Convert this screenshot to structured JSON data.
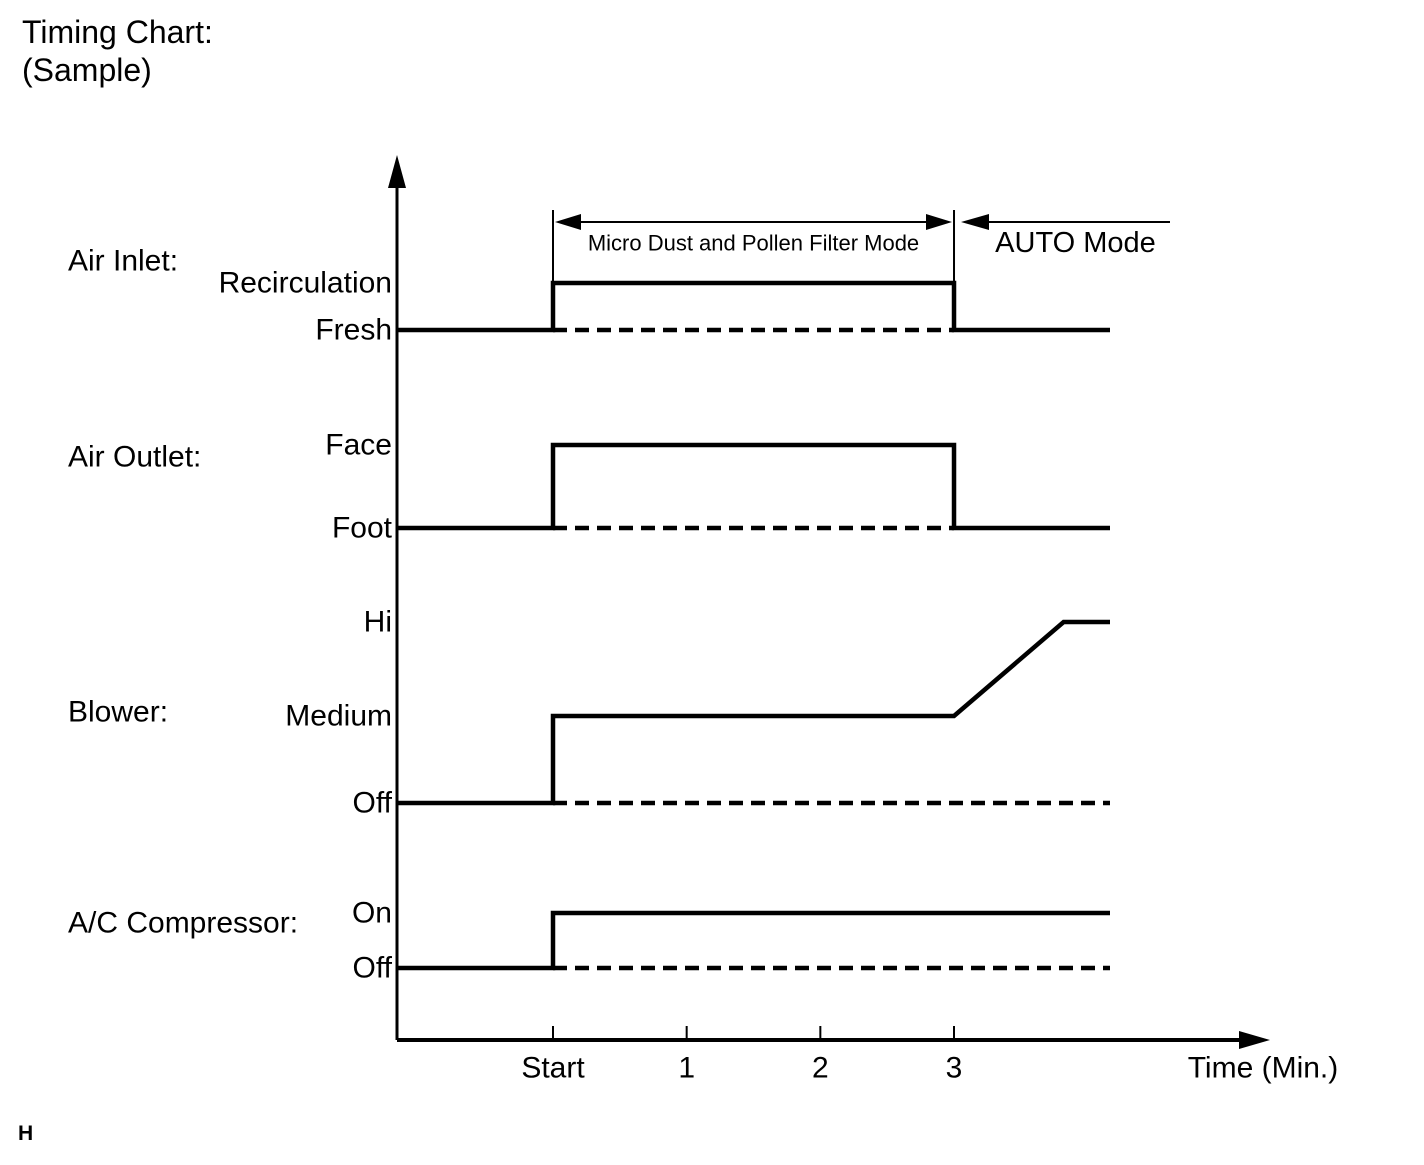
{
  "page": {
    "title_line1": "Timing Chart:",
    "title_line2": "(Sample)",
    "footer_mark": "H"
  },
  "colors": {
    "ink": "#000000",
    "background": "#ffffff"
  },
  "chart_data": {
    "type": "timing",
    "title": "Timing Chart: (Sample)",
    "x_axis": {
      "label": "Time (Min.)",
      "ticks": [
        {
          "t": 0,
          "label": "Start"
        },
        {
          "t": 1,
          "label": "1"
        },
        {
          "t": 2,
          "label": "2"
        },
        {
          "t": 3,
          "label": "3"
        }
      ]
    },
    "annotations": [
      {
        "kind": "range",
        "label": "Micro Dust and Pollen Filter Mode",
        "from_t": 0,
        "to_t": 3
      },
      {
        "kind": "after",
        "label": "AUTO Mode",
        "from_t": 3
      }
    ],
    "groups": [
      {
        "name": "Air Inlet:",
        "levels": [
          "Recirculation",
          "Fresh"
        ],
        "initial": "Fresh",
        "steps": [
          {
            "t": 0,
            "to": "Recirculation"
          },
          {
            "t": 3,
            "to": "Fresh"
          }
        ],
        "dashed": {
          "level": "Fresh",
          "from_t": 0,
          "to_t": 3
        }
      },
      {
        "name": "Air Outlet:",
        "levels": [
          "Face",
          "Foot"
        ],
        "initial": "Foot",
        "steps": [
          {
            "t": 0,
            "to": "Face"
          },
          {
            "t": 3,
            "to": "Foot"
          }
        ],
        "dashed": {
          "level": "Foot",
          "from_t": 0,
          "to_t": 3
        }
      },
      {
        "name": "Blower:",
        "levels": [
          "Hi",
          "Medium",
          "Off"
        ],
        "initial": "Off",
        "steps": [
          {
            "t": 0,
            "to": "Medium"
          },
          {
            "t": 3,
            "to": "Hi",
            "ramp_min": 0.82
          }
        ],
        "dashed": {
          "level": "Off",
          "from_t": 0,
          "to_t": 4.17
        }
      },
      {
        "name": "A/C Compressor:",
        "levels": [
          "On",
          "Off"
        ],
        "initial": "Off",
        "steps": [
          {
            "t": 0,
            "to": "On"
          }
        ],
        "dashed": {
          "level": "Off",
          "from_t": 0,
          "to_t": 4.17
        }
      }
    ]
  }
}
